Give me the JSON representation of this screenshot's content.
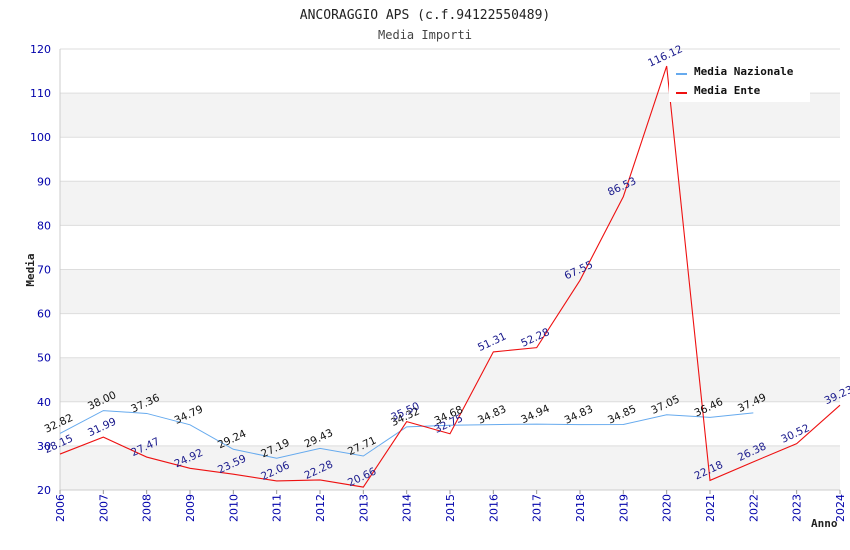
{
  "chart_data": {
    "type": "line",
    "title": "ANCORAGGIO APS (c.f.94122550489)",
    "subtitle": "Media Importi",
    "xlabel": "Anno",
    "ylabel": "Media",
    "ylim": [
      20,
      120
    ],
    "yticks": [
      20,
      30,
      40,
      50,
      60,
      70,
      80,
      90,
      100,
      110,
      120
    ],
    "categories": [
      "2006",
      "2007",
      "2008",
      "2009",
      "2010",
      "2011",
      "2012",
      "2013",
      "2014",
      "2015",
      "2016",
      "2017",
      "2018",
      "2019",
      "2020",
      "2021",
      "2022",
      "2023",
      "2024"
    ],
    "legend_position": "top-right",
    "series": [
      {
        "name": "Media Nazionale",
        "color": "#66aaee",
        "values": [
          32.82,
          38.0,
          37.36,
          34.79,
          29.24,
          27.19,
          29.43,
          27.71,
          34.32,
          34.68,
          34.83,
          34.94,
          34.83,
          34.85,
          37.05,
          36.46,
          37.49,
          null,
          null
        ],
        "labels": [
          "32.82",
          "38.00",
          "37.36",
          "34.79",
          "29.24",
          "27.19",
          "29.43",
          "27.71",
          "34.32",
          "34.68",
          "34.83",
          "34.94",
          "34.83",
          "34.85",
          "37.05",
          "36.46",
          "37.49",
          "",
          ""
        ]
      },
      {
        "name": "Media Ente",
        "color": "#ee1111",
        "values": [
          28.15,
          31.99,
          27.47,
          24.92,
          23.59,
          22.06,
          22.28,
          20.66,
          35.5,
          32.75,
          51.31,
          52.28,
          67.55,
          86.53,
          116.12,
          22.18,
          26.38,
          30.52,
          39.23
        ],
        "labels": [
          "28.15",
          "31.99",
          "27.47",
          "24.92",
          "23.59",
          "22.06",
          "22.28",
          "20.66",
          "35.50",
          "32.75",
          "51.31",
          "52.28",
          "67.55",
          "86.53",
          "116.12",
          "22.18",
          "26.38",
          "30.52",
          "39.23"
        ]
      }
    ]
  }
}
